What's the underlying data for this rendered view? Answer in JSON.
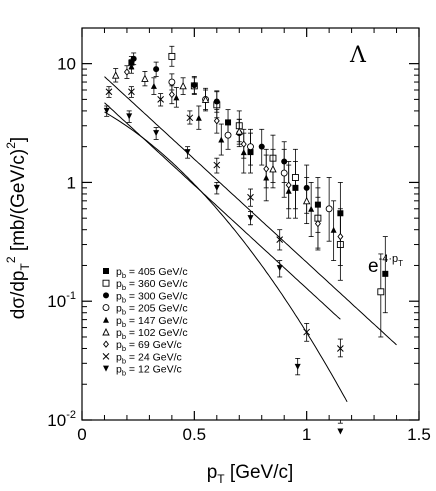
{
  "chart_data": {
    "type": "scatter",
    "particle_label": "Λ",
    "xlabel": {
      "main": "p",
      "sub": "T",
      "unit": " [GeV/c]"
    },
    "ylabel": {
      "text": "dσ/dp",
      "sub": "T",
      "sup": "2",
      "unit": " [mb/(GeV/c)",
      "unit_sup": "2",
      "unit_end": "]"
    },
    "xlim": [
      0,
      1.5
    ],
    "ylim_log10": [
      -2,
      1.3
    ],
    "log_y": true,
    "x_ticks": [
      {
        "v": 0,
        "label": "0"
      },
      {
        "v": 0.5,
        "label": "0.5"
      },
      {
        "v": 1,
        "label": "1"
      },
      {
        "v": 1.5,
        "label": "1.5"
      }
    ],
    "y_ticks": [
      {
        "exp": -2,
        "base": "10",
        "sup": "-2"
      },
      {
        "exp": -1,
        "base": "10",
        "sup": "-1"
      },
      {
        "exp": 0,
        "base": "1",
        "sup": ""
      },
      {
        "exp": 1,
        "base": "10",
        "sup": ""
      }
    ],
    "fit_annotation": {
      "text": "e",
      "sup": "-4·p",
      "sub": "T"
    },
    "fit_curves": [
      {
        "A": 11.6,
        "B": 4.0
      },
      {
        "A": 7.0,
        "B": 4.0
      },
      {
        "A": 4.9,
        "B": 2.0,
        "C": 2.5
      }
    ],
    "legend_prefix": "p",
    "legend_sub": "b",
    "legend_placement": "lower-left",
    "series": [
      {
        "name": " = 405 GeV/c",
        "marker": "square-filled",
        "points": [
          [
            0.22,
            10.2,
            9.0,
            11.5
          ],
          [
            0.65,
            3.2,
            2.5,
            4.1
          ],
          [
            0.75,
            1.8,
            1.2,
            2.6
          ],
          [
            0.95,
            0.9,
            0.5,
            1.5
          ],
          [
            1.05,
            0.65,
            0.38,
            1.1
          ],
          [
            1.15,
            0.55,
            0.3,
            1.0
          ],
          [
            1.35,
            0.17,
            0.08,
            0.35
          ]
        ]
      },
      {
        "name": " = 360 GeV/c",
        "marker": "square-open",
        "points": [
          [
            0.4,
            11.5,
            9.5,
            14.0
          ],
          [
            0.5,
            6.5,
            5.5,
            7.6
          ],
          [
            0.6,
            4.5,
            3.5,
            5.8
          ],
          [
            0.7,
            3.0,
            2.2,
            4.0
          ],
          [
            0.85,
            1.6,
            1.0,
            2.5
          ],
          [
            0.95,
            1.1,
            0.6,
            1.9
          ],
          [
            1.05,
            0.5,
            0.28,
            0.9
          ],
          [
            1.15,
            0.3,
            0.15,
            0.55
          ],
          [
            1.33,
            0.12,
            0.05,
            0.25
          ]
        ]
      },
      {
        "name": " = 300 GeV/c",
        "marker": "circle-filled",
        "points": [
          [
            0.23,
            11.0,
            9.8,
            12.3
          ],
          [
            0.33,
            9.0,
            7.8,
            10.3
          ],
          [
            0.5,
            6.6,
            5.6,
            7.8
          ],
          [
            0.6,
            4.8,
            3.9,
            5.9
          ],
          [
            0.7,
            2.6,
            2.0,
            3.4
          ],
          [
            0.8,
            2.0,
            1.4,
            2.8
          ],
          [
            0.9,
            1.5,
            1.0,
            2.2
          ],
          [
            1.0,
            0.9,
            0.55,
            1.4
          ]
        ]
      },
      {
        "name": " = 205 GeV/c",
        "marker": "circle-open",
        "points": [
          [
            0.4,
            7.0,
            6.0,
            8.2
          ],
          [
            0.55,
            5.0,
            4.0,
            6.2
          ],
          [
            0.65,
            2.5,
            1.9,
            3.2
          ],
          [
            0.75,
            2.0,
            1.4,
            2.8
          ],
          [
            0.9,
            1.2,
            0.75,
            1.9
          ],
          [
            1.1,
            0.6,
            0.32,
            1.1
          ]
        ]
      },
      {
        "name": " = 147 GeV/c",
        "marker": "triangle-up-filled",
        "points": [
          [
            0.22,
            9.5,
            8.3,
            10.8
          ],
          [
            0.32,
            6.5,
            5.5,
            7.6
          ],
          [
            0.42,
            5.2,
            4.3,
            6.3
          ],
          [
            0.52,
            3.5,
            2.8,
            4.4
          ],
          [
            0.62,
            2.3,
            1.7,
            3.1
          ],
          [
            0.72,
            1.8,
            1.2,
            2.6
          ],
          [
            0.82,
            1.1,
            0.7,
            1.7
          ],
          [
            0.92,
            0.85,
            0.5,
            1.4
          ],
          [
            1.02,
            0.6,
            0.35,
            1.0
          ],
          [
            1.12,
            0.4,
            0.22,
            0.7
          ]
        ]
      },
      {
        "name": " = 102 GeV/c",
        "marker": "triangle-up-open",
        "points": [
          [
            0.15,
            8.0,
            7.0,
            9.1
          ],
          [
            0.28,
            7.5,
            6.5,
            8.6
          ],
          [
            0.45,
            6.5,
            5.5,
            7.6
          ],
          [
            0.55,
            5.0,
            4.1,
            6.0
          ],
          [
            0.7,
            2.7,
            2.1,
            3.4
          ],
          [
            0.85,
            1.3,
            0.9,
            1.9
          ],
          [
            1.0,
            0.7,
            0.45,
            1.1
          ]
        ]
      },
      {
        "name": " =  69 GeV/c",
        "marker": "diamond-open",
        "points": [
          [
            0.2,
            8.5,
            7.5,
            9.6
          ],
          [
            0.4,
            5.5,
            4.6,
            6.5
          ],
          [
            0.6,
            3.3,
            2.6,
            4.1
          ],
          [
            0.72,
            2.1,
            1.6,
            2.8
          ],
          [
            0.82,
            1.3,
            0.9,
            1.9
          ],
          [
            0.92,
            0.95,
            0.6,
            1.5
          ],
          [
            1.05,
            0.45,
            0.27,
            0.75
          ],
          [
            1.15,
            0.35,
            0.2,
            0.6
          ]
        ]
      },
      {
        "name": " =  24 GeV/c",
        "marker": "cross",
        "points": [
          [
            0.12,
            5.8,
            5.2,
            6.4
          ],
          [
            0.22,
            5.8,
            5.2,
            6.4
          ],
          [
            0.35,
            5.0,
            4.4,
            5.6
          ],
          [
            0.48,
            3.5,
            3.1,
            4.0
          ],
          [
            0.6,
            1.4,
            1.2,
            1.6
          ],
          [
            0.75,
            0.75,
            0.63,
            0.88
          ],
          [
            0.88,
            0.33,
            0.27,
            0.4
          ],
          [
            1.0,
            0.055,
            0.046,
            0.065
          ],
          [
            1.15,
            0.04,
            0.034,
            0.048
          ]
        ]
      },
      {
        "name": " =  12 GeV/c",
        "marker": "triangle-down-filled",
        "points": [
          [
            0.11,
            4.0,
            3.6,
            4.4
          ],
          [
            0.21,
            3.6,
            3.2,
            4.0
          ],
          [
            0.33,
            2.6,
            2.3,
            2.9
          ],
          [
            0.47,
            1.8,
            1.6,
            2.0
          ],
          [
            0.6,
            0.9,
            0.8,
            1.0
          ],
          [
            0.75,
            0.5,
            0.44,
            0.57
          ],
          [
            0.88,
            0.19,
            0.16,
            0.22
          ],
          [
            0.96,
            0.028,
            0.024,
            0.033
          ],
          [
            1.15,
            0.008,
            0.0068,
            0.0094
          ]
        ]
      }
    ]
  }
}
